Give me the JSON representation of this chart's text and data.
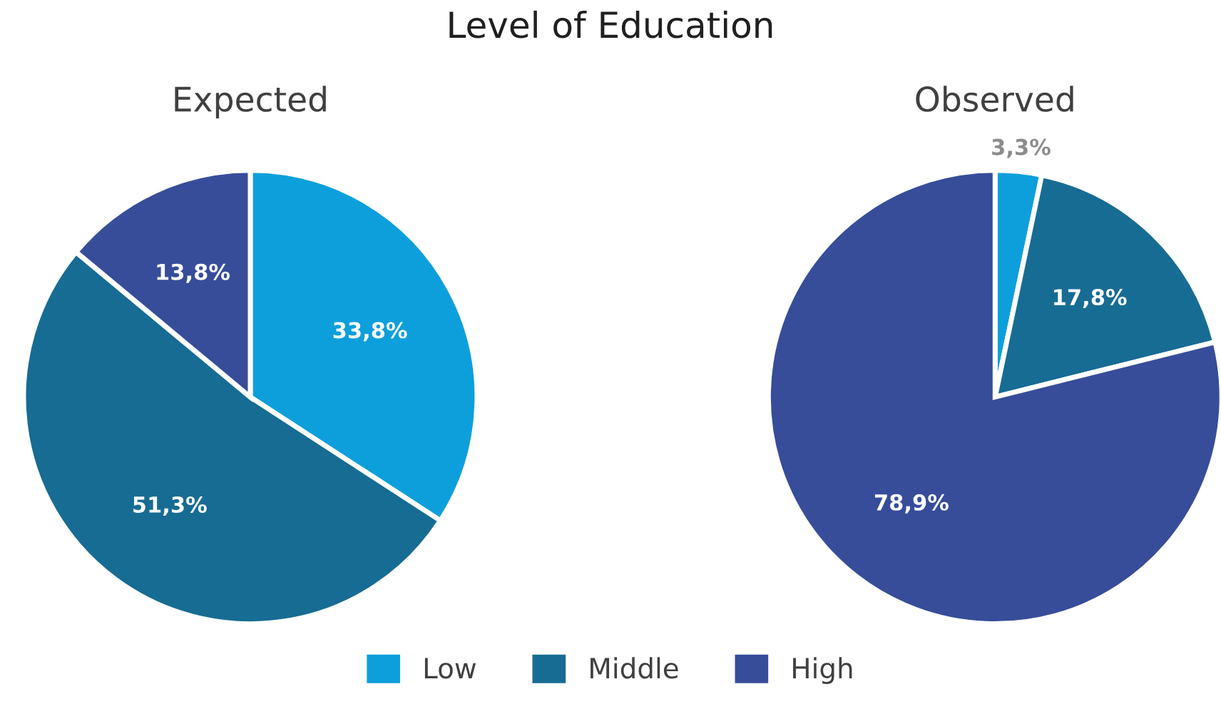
{
  "chart_data": [
    {
      "type": "pie",
      "title": "Level of Education",
      "subtitle": "Expected",
      "categories": [
        "Low",
        "Middle",
        "High"
      ],
      "values": [
        33.8,
        51.3,
        13.8
      ],
      "colors": [
        "#0d9fdc",
        "#176c94",
        "#374d9a"
      ],
      "value_labels": [
        "33,8%",
        "51,3%",
        "13,8%"
      ],
      "legend": "bottom"
    },
    {
      "type": "pie",
      "subtitle": "Observed",
      "categories": [
        null,
        null,
        null
      ],
      "values": [
        3.3,
        17.8,
        78.9
      ],
      "colors": [
        "#0d9fdc",
        "#176c94",
        "#374d9a"
      ],
      "value_labels": [
        "3,3%",
        "17,8%",
        "78,9%"
      ]
    }
  ]
}
